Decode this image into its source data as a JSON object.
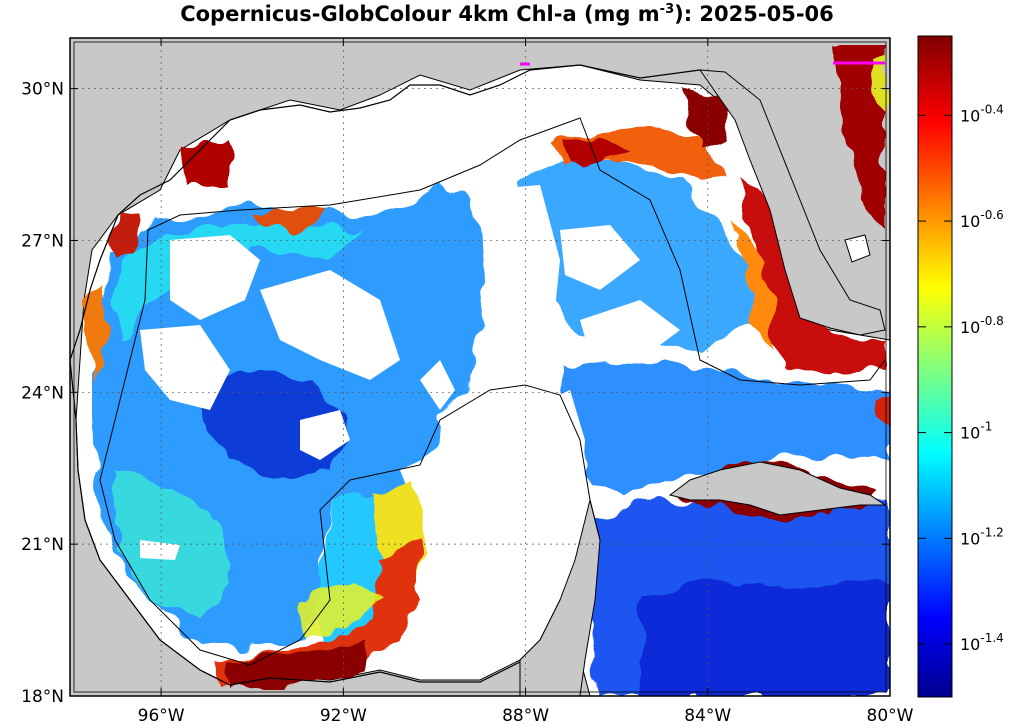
{
  "title": {
    "prefix": "Copernicus-GlobColour 4km Chl-a (mg m",
    "superscript": "-3",
    "suffix": "): 2025-05-06"
  },
  "map": {
    "lon_range": [
      -98,
      -80
    ],
    "lat_range": [
      18,
      31
    ],
    "lon_ticks": [
      {
        "value": -96,
        "label": "96°W"
      },
      {
        "value": -92,
        "label": "92°W"
      },
      {
        "value": -88,
        "label": "88°W"
      },
      {
        "value": -84,
        "label": "84°W"
      },
      {
        "value": -80,
        "label": "80°W"
      }
    ],
    "lat_ticks": [
      {
        "value": 18,
        "label": "18°N"
      },
      {
        "value": 21,
        "label": "21°N"
      },
      {
        "value": 24,
        "label": "24°N"
      },
      {
        "value": 27,
        "label": "27°N"
      },
      {
        "value": 30,
        "label": "30°N"
      }
    ],
    "grid": true,
    "colors": {
      "land": "#c8c8c8",
      "no_data": "#ffffff",
      "coastline": "#000000",
      "eez_line": "#000000",
      "magenta_marker": "#ff00ff"
    }
  },
  "colorbar": {
    "scale": "log10",
    "range": [
      -1.5,
      -0.25
    ],
    "ticks": [
      {
        "value": -0.4,
        "base": "10",
        "exp": "-0.4"
      },
      {
        "value": -0.6,
        "base": "10",
        "exp": "-0.6"
      },
      {
        "value": -0.8,
        "base": "10",
        "exp": "-0.8"
      },
      {
        "value": -1.0,
        "base": "10",
        "exp": "-1"
      },
      {
        "value": -1.2,
        "base": "10",
        "exp": "-1.2"
      },
      {
        "value": -1.4,
        "base": "10",
        "exp": "-1.4"
      }
    ],
    "colormap": [
      "#00008f",
      "#0000ff",
      "#00ffff",
      "#ffff00",
      "#ff0000",
      "#800000"
    ]
  }
}
